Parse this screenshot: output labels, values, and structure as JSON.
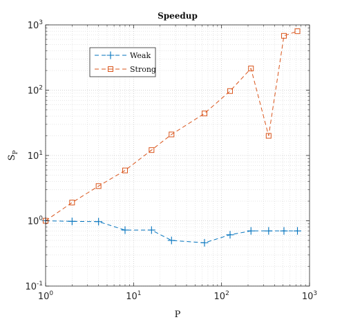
{
  "chart_data": {
    "type": "line",
    "title": "Speedup",
    "xlabel": "P",
    "ylabel": "S",
    "ylabel_subscript": "P",
    "xscale": "log",
    "yscale": "log",
    "xlim": [
      1,
      1000
    ],
    "ylim": [
      0.1,
      1000
    ],
    "grid": true,
    "minor_grid": true,
    "legend_position": "upper-left",
    "x_ticks": [
      {
        "base": "10",
        "exp": "0",
        "value": 1
      },
      {
        "base": "10",
        "exp": "1",
        "value": 10
      },
      {
        "base": "10",
        "exp": "2",
        "value": 100
      },
      {
        "base": "10",
        "exp": "3",
        "value": 1000
      }
    ],
    "y_ticks": [
      {
        "base": "10",
        "exp": "-1",
        "value": 0.1
      },
      {
        "base": "10",
        "exp": "0",
        "value": 1
      },
      {
        "base": "10",
        "exp": "1",
        "value": 10
      },
      {
        "base": "10",
        "exp": "2",
        "value": 100
      },
      {
        "base": "10",
        "exp": "3",
        "value": 1000
      }
    ],
    "series": [
      {
        "name": "Weak",
        "color": "#0072BD",
        "marker": "plus",
        "line_style": "dashed",
        "x": [
          1,
          2,
          4,
          8,
          16,
          27,
          64,
          125,
          216,
          343,
          512,
          729
        ],
        "y": [
          1.0,
          0.98,
          0.97,
          0.72,
          0.72,
          0.5,
          0.46,
          0.61,
          0.7,
          0.7,
          0.7,
          0.7
        ]
      },
      {
        "name": "Strong",
        "color": "#D95319",
        "marker": "square",
        "line_style": "dashed",
        "x": [
          1,
          2,
          4,
          8,
          16,
          27,
          64,
          125,
          216,
          343,
          512,
          729
        ],
        "y": [
          1.0,
          1.9,
          3.4,
          5.9,
          12.1,
          21.0,
          44.0,
          97.0,
          215.0,
          20.0,
          680.0,
          800.0
        ]
      }
    ]
  }
}
